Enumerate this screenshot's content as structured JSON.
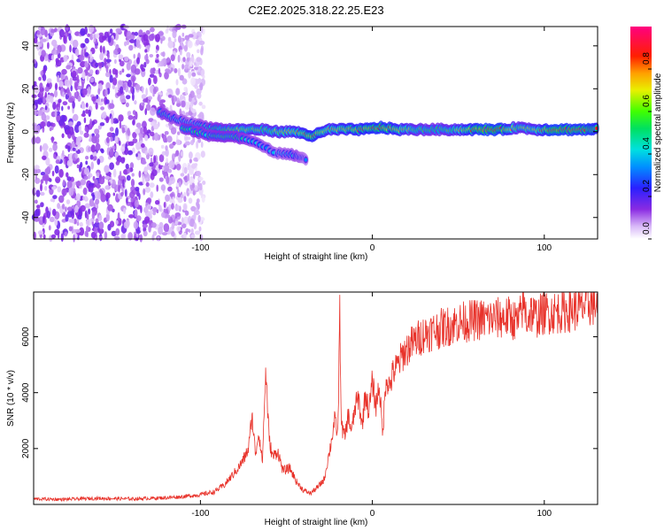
{
  "title": "C2E2.2025.318.22.25.E23",
  "colors": {
    "snr_line": "#e8322a",
    "background": "#ffffff",
    "axis": "#000000"
  },
  "chart_data": [
    {
      "type": "heatmap",
      "name": "spectrogram",
      "xlabel": "Height of straight line (km)",
      "ylabel": "Frequency (Hz)",
      "xlim": [
        -197,
        131
      ],
      "ylim": [
        -50,
        49
      ],
      "xticks": [
        -100,
        0,
        100
      ],
      "yticks": [
        -40,
        -20,
        0,
        20,
        40
      ],
      "colorbar": {
        "label": "Normalized spectral amplitude",
        "range": [
          0,
          1
        ],
        "ticks": [
          0.0,
          0.2,
          0.4,
          0.6,
          0.8
        ],
        "colormap": "rainbow (white→violet→blue→cyan→green→yellow→red→magenta)"
      },
      "noise_region_x": [
        -197,
        -98
      ],
      "main_trace": [
        {
          "x": -124,
          "y": 9,
          "amp": 0.45
        },
        {
          "x": -115,
          "y": 6,
          "amp": 0.4
        },
        {
          "x": -105,
          "y": 4,
          "amp": 0.35
        },
        {
          "x": -95,
          "y": 2,
          "amp": 0.45
        },
        {
          "x": -85,
          "y": 1,
          "amp": 0.55
        },
        {
          "x": -75,
          "y": 1,
          "amp": 0.65
        },
        {
          "x": -65,
          "y": 1,
          "amp": 0.6
        },
        {
          "x": -55,
          "y": 0,
          "amp": 0.65
        },
        {
          "x": -45,
          "y": 0,
          "amp": 0.7
        },
        {
          "x": -35,
          "y": -2,
          "amp": 0.8
        },
        {
          "x": -25,
          "y": 1,
          "amp": 0.7
        },
        {
          "x": -15,
          "y": 1,
          "amp": 0.75
        },
        {
          "x": -5,
          "y": 1,
          "amp": 0.8
        },
        {
          "x": 5,
          "y": 2,
          "amp": 0.85
        },
        {
          "x": 15,
          "y": 1,
          "amp": 0.75
        },
        {
          "x": 25,
          "y": 1,
          "amp": 0.6
        },
        {
          "x": 35,
          "y": 1,
          "amp": 0.55
        },
        {
          "x": 45,
          "y": 1,
          "amp": 0.6
        },
        {
          "x": 55,
          "y": 1,
          "amp": 0.75
        },
        {
          "x": 65,
          "y": 1,
          "amp": 0.9
        },
        {
          "x": 75,
          "y": 1,
          "amp": 0.85
        },
        {
          "x": 85,
          "y": 2,
          "amp": 0.6
        },
        {
          "x": 95,
          "y": 1,
          "amp": 0.65
        },
        {
          "x": 105,
          "y": 1,
          "amp": 0.9
        },
        {
          "x": 115,
          "y": 1,
          "amp": 0.85
        },
        {
          "x": 125,
          "y": 1,
          "amp": 0.85
        },
        {
          "x": 131,
          "y": 1,
          "amp": 0.8
        }
      ],
      "secondary_trace": [
        {
          "x": -110,
          "y": 2,
          "amp": 0.5
        },
        {
          "x": -95,
          "y": -2,
          "amp": 0.45
        },
        {
          "x": -85,
          "y": -2,
          "amp": 0.5
        },
        {
          "x": -75,
          "y": -3,
          "amp": 0.45
        },
        {
          "x": -55,
          "y": -10,
          "amp": 0.35
        },
        {
          "x": -45,
          "y": -11,
          "amp": 0.4
        },
        {
          "x": -38,
          "y": -13,
          "amp": 0.3
        }
      ]
    },
    {
      "type": "line",
      "name": "snr",
      "xlabel": "Height of straight line (km)",
      "ylabel": "SNR (10 * v/v)",
      "xlim": [
        -197,
        131
      ],
      "ylim": [
        0,
        7600
      ],
      "xticks": [
        -100,
        0,
        100
      ],
      "yticks": [
        2000,
        4000,
        6000
      ],
      "x": [
        -197,
        -180,
        -160,
        -140,
        -120,
        -110,
        -100,
        -92,
        -86,
        -82,
        -78,
        -75,
        -72,
        -70,
        -68,
        -66,
        -64,
        -62,
        -60,
        -58,
        -55,
        -52,
        -48,
        -44,
        -40,
        -36,
        -32,
        -28,
        -24,
        -22,
        -20,
        -19,
        -18,
        -16,
        -14,
        -12,
        -10,
        -8,
        -6,
        -4,
        -2,
        0,
        2,
        4,
        6,
        8,
        10,
        12,
        15,
        18,
        22,
        26,
        30,
        35,
        40,
        45,
        50,
        60,
        70,
        80,
        85,
        88,
        90,
        92,
        95,
        100,
        110,
        120,
        125,
        131
      ],
      "values": [
        200,
        180,
        220,
        200,
        240,
        280,
        350,
        450,
        700,
        1000,
        1300,
        1600,
        2000,
        3200,
        1800,
        2600,
        1500,
        4800,
        2300,
        1700,
        1900,
        1200,
        1300,
        800,
        500,
        400,
        600,
        900,
        2200,
        3000,
        2500,
        7000,
        2800,
        2400,
        3200,
        2600,
        3500,
        3800,
        2800,
        4000,
        3300,
        4400,
        3500,
        4300,
        2500,
        4600,
        4200,
        4700,
        5000,
        5400,
        5700,
        5900,
        6100,
        6200,
        6300,
        6400,
        6500,
        6600,
        6650,
        6700,
        6500,
        7200,
        6600,
        6900,
        6700,
        6850,
        6900,
        7000,
        7150,
        7200
      ]
    }
  ]
}
